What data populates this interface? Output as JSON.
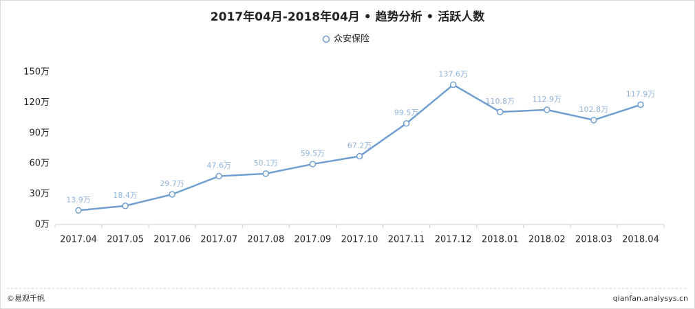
{
  "chart_data": {
    "type": "line",
    "title": "2017年04月-2018年04月 • 趋势分析 • 活跃人数",
    "categories": [
      "2017.04",
      "2017.05",
      "2017.06",
      "2017.07",
      "2017.08",
      "2017.09",
      "2017.10",
      "2017.11",
      "2017.12",
      "2018.01",
      "2018.02",
      "2018.03",
      "2018.04"
    ],
    "series": [
      {
        "name": "众安保险",
        "color": "#6f9fd0",
        "values": [
          13.9,
          18.4,
          29.7,
          47.6,
          50.1,
          59.5,
          67.2,
          99.5,
          137.6,
          110.8,
          112.9,
          102.8,
          117.9
        ],
        "value_labels": [
          "13.9万",
          "18.4万",
          "29.7万",
          "47.6万",
          "50.1万",
          "59.5万",
          "67.2万",
          "99.5万",
          "137.6万",
          "110.8万",
          "112.9万",
          "102.8万",
          "117.9万"
        ]
      }
    ],
    "ylim": [
      0,
      150
    ],
    "yticks": [
      {
        "value": 0,
        "label": "0万"
      },
      {
        "value": 30,
        "label": "30万"
      },
      {
        "value": 60,
        "label": "60万"
      },
      {
        "value": 90,
        "label": "90万"
      },
      {
        "value": 120,
        "label": "120万"
      },
      {
        "value": 150,
        "label": "150万"
      }
    ],
    "grid": false
  },
  "footer": {
    "left": "©易观千帆",
    "right": "qianfan.analysys.cn"
  }
}
